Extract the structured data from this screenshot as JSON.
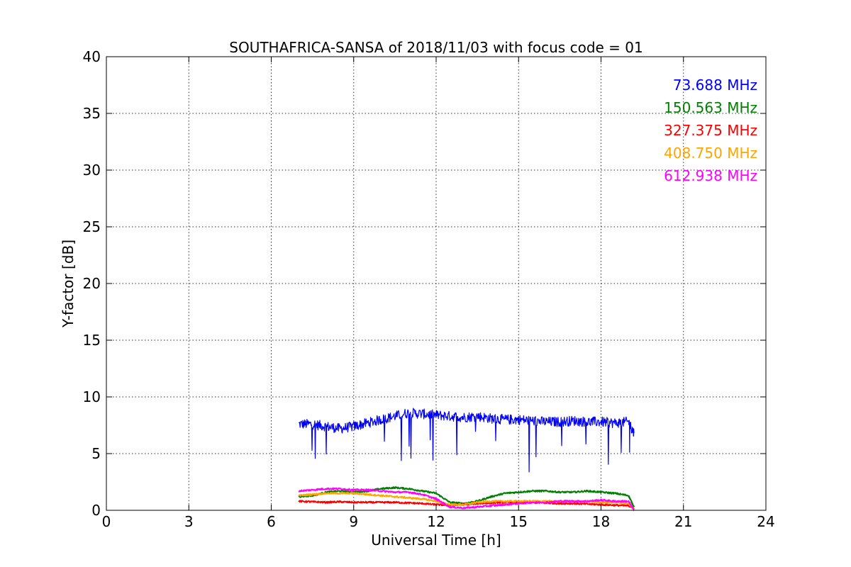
{
  "chart_data": {
    "type": "line",
    "title": "SOUTHAFRICA-SANSA of 2018/11/03 with focus code = 01",
    "xlabel": "Universal Time [h]",
    "ylabel": "Y-factor [dB]",
    "xlim": [
      0,
      24
    ],
    "ylim": [
      0,
      40
    ],
    "xticks": [
      0,
      3,
      6,
      9,
      12,
      15,
      18,
      21,
      24
    ],
    "yticks": [
      0,
      5,
      10,
      15,
      20,
      25,
      30,
      35,
      40
    ],
    "grid": true,
    "legend_position": "top-right",
    "series": [
      {
        "name": "73.688 MHz",
        "color": "#0000ff",
        "x": [
          7.0,
          7.5,
          8.0,
          8.5,
          9.0,
          9.5,
          10.0,
          10.5,
          11.0,
          11.5,
          12.0,
          12.5,
          13.0,
          13.5,
          14.0,
          14.5,
          15.0,
          15.5,
          16.0,
          16.5,
          17.0,
          17.5,
          18.0,
          18.5,
          19.0,
          19.2
        ],
        "y": [
          7.6,
          7.6,
          7.4,
          7.2,
          7.4,
          7.7,
          8.0,
          8.3,
          8.6,
          8.5,
          8.4,
          8.3,
          8.2,
          8.3,
          8.1,
          8.0,
          8.0,
          7.9,
          7.8,
          7.8,
          7.9,
          7.8,
          7.8,
          7.7,
          7.8,
          6.8
        ]
      },
      {
        "name": "150.563 MHz",
        "color": "#008000",
        "x": [
          7.0,
          7.5,
          8.0,
          8.5,
          9.0,
          9.5,
          10.0,
          10.5,
          11.0,
          11.5,
          12.0,
          12.5,
          13.0,
          13.5,
          14.0,
          14.5,
          15.0,
          15.5,
          16.0,
          16.5,
          17.0,
          17.5,
          18.0,
          18.5,
          19.0,
          19.2
        ],
        "y": [
          1.2,
          1.3,
          1.6,
          1.7,
          1.6,
          1.7,
          1.9,
          2.0,
          1.9,
          1.7,
          1.5,
          0.7,
          0.6,
          0.8,
          1.2,
          1.5,
          1.6,
          1.7,
          1.7,
          1.6,
          1.6,
          1.7,
          1.6,
          1.5,
          1.3,
          0.3
        ]
      },
      {
        "name": "327.375 MHz",
        "color": "#ff0000",
        "x": [
          7.0,
          7.5,
          8.0,
          8.5,
          9.0,
          9.5,
          10.0,
          10.5,
          11.0,
          11.5,
          12.0,
          12.5,
          13.0,
          13.5,
          14.0,
          14.5,
          15.0,
          15.5,
          16.0,
          16.5,
          17.0,
          17.5,
          18.0,
          18.5,
          19.0,
          19.2
        ],
        "y": [
          0.8,
          0.75,
          0.7,
          0.75,
          0.7,
          0.7,
          0.7,
          0.7,
          0.65,
          0.6,
          0.5,
          0.45,
          0.5,
          0.6,
          0.65,
          0.7,
          0.7,
          0.7,
          0.65,
          0.6,
          0.6,
          0.55,
          0.5,
          0.45,
          0.4,
          0.2
        ]
      },
      {
        "name": "408.750 MHz",
        "color": "#ffa500",
        "x": [
          7.0,
          7.5,
          8.0,
          8.5,
          9.0,
          9.5,
          10.0,
          10.5,
          11.0,
          11.5,
          12.0,
          12.5,
          13.0,
          13.5,
          14.0,
          14.5,
          15.0,
          15.5,
          16.0,
          16.5,
          17.0,
          17.5,
          18.0,
          18.5,
          19.0,
          19.2
        ],
        "y": [
          1.3,
          1.4,
          1.5,
          1.5,
          1.5,
          1.4,
          1.3,
          1.2,
          1.1,
          1.0,
          0.8,
          0.5,
          0.5,
          0.7,
          0.8,
          0.8,
          0.8,
          0.8,
          0.8,
          0.8,
          0.8,
          0.8,
          0.7,
          0.7,
          0.6,
          0.1
        ]
      },
      {
        "name": "612.938 MHz",
        "color": "#ff00ff",
        "x": [
          7.0,
          7.5,
          8.0,
          8.5,
          9.0,
          9.5,
          10.0,
          10.5,
          11.0,
          11.5,
          12.0,
          12.5,
          13.0,
          13.5,
          14.0,
          14.5,
          15.0,
          15.5,
          16.0,
          16.5,
          17.0,
          17.5,
          18.0,
          18.5,
          19.0,
          19.2
        ],
        "y": [
          1.7,
          1.8,
          1.9,
          1.9,
          1.8,
          1.8,
          1.7,
          1.6,
          1.6,
          1.4,
          1.0,
          0.3,
          0.2,
          0.3,
          0.4,
          0.5,
          0.6,
          0.7,
          0.7,
          0.8,
          0.8,
          0.8,
          0.9,
          0.8,
          0.8,
          0.0
        ]
      }
    ]
  }
}
